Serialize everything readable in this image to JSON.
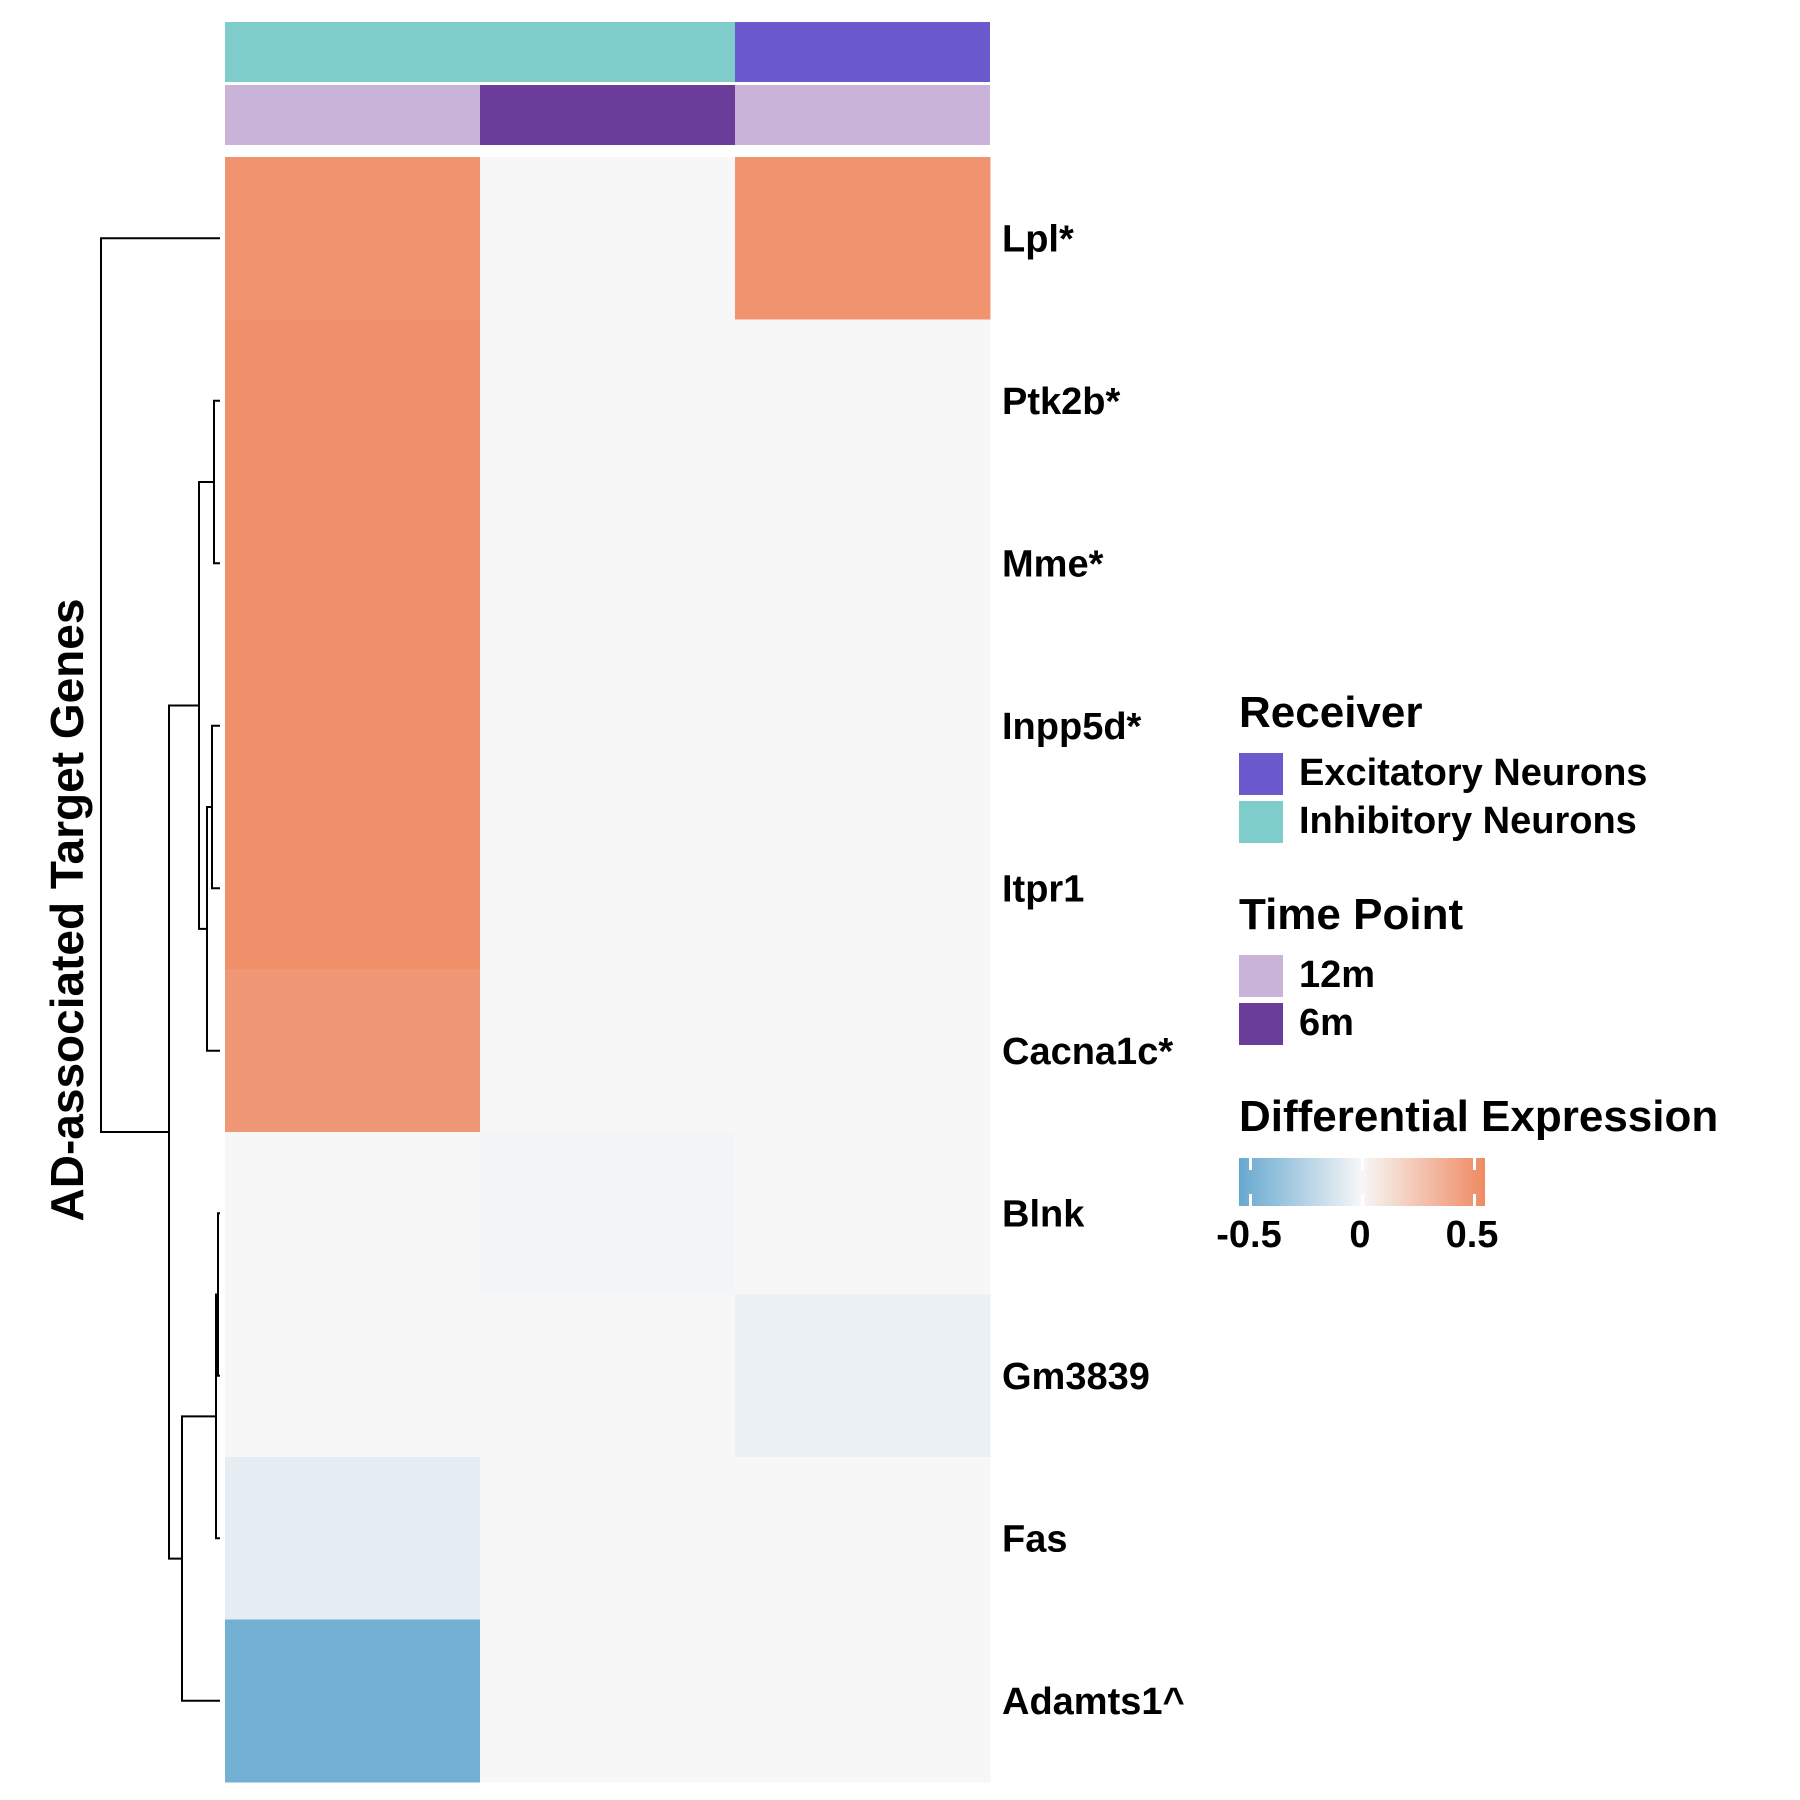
{
  "chart_data": {
    "type": "heatmap",
    "ylabel": "AD-associated Target Genes",
    "rows": [
      "Lpl*",
      "Ptk2b*",
      "Mme*",
      "Inpp5d*",
      "Itpr1",
      "Cacna1c*",
      "Blnk",
      "Gm3839",
      "Fas",
      "Adamts1^"
    ],
    "columns": [
      {
        "receiver": "Inhibitory Neurons",
        "time_point": "12m"
      },
      {
        "receiver": "Inhibitory Neurons",
        "time_point": "6m"
      },
      {
        "receiver": "Excitatory Neurons",
        "time_point": "12m"
      }
    ],
    "values": [
      [
        0.5,
        0.0,
        0.5
      ],
      [
        0.52,
        0.0,
        0.0
      ],
      [
        0.52,
        0.0,
        0.0
      ],
      [
        0.52,
        0.0,
        0.0
      ],
      [
        0.52,
        0.0,
        0.0
      ],
      [
        0.48,
        0.0,
        0.0
      ],
      [
        0.0,
        -0.02,
        0.0
      ],
      [
        0.0,
        0.0,
        -0.05
      ],
      [
        -0.07,
        0.0,
        0.0
      ],
      [
        -0.5,
        0.0,
        0.0
      ]
    ],
    "adamts1_note": "",
    "color_scale": {
      "low": "#67a9cf",
      "mid": "#f7f7f7",
      "high": "#ef8a62",
      "range": [
        -0.55,
        0.55
      ]
    },
    "legend": {
      "receiver": {
        "title": "Receiver",
        "items": [
          {
            "label": "Excitatory Neurons",
            "color": "#6a5acd"
          },
          {
            "label": "Inhibitory Neurons",
            "color": "#7ecdcb"
          }
        ]
      },
      "time_point": {
        "title": "Time Point",
        "items": [
          {
            "label": "12m",
            "color": "#c9b3d8"
          },
          {
            "label": "6m",
            "color": "#6a3d9a"
          }
        ]
      },
      "differential_expression": {
        "title": "Differential Expression",
        "ticks": [
          -0.5,
          0,
          0.5
        ],
        "tick_labels": [
          "-0.5",
          "0",
          "0.5"
        ]
      }
    },
    "dendrogram": {
      "merges": [
        [
          1,
          2
        ],
        [
          3,
          4
        ],
        [
          5,
          11
        ],
        [
          10,
          12
        ],
        [
          6,
          7
        ],
        [
          14,
          8
        ],
        [
          15,
          9
        ],
        [
          13,
          16
        ],
        [
          0,
          17
        ]
      ]
    }
  }
}
